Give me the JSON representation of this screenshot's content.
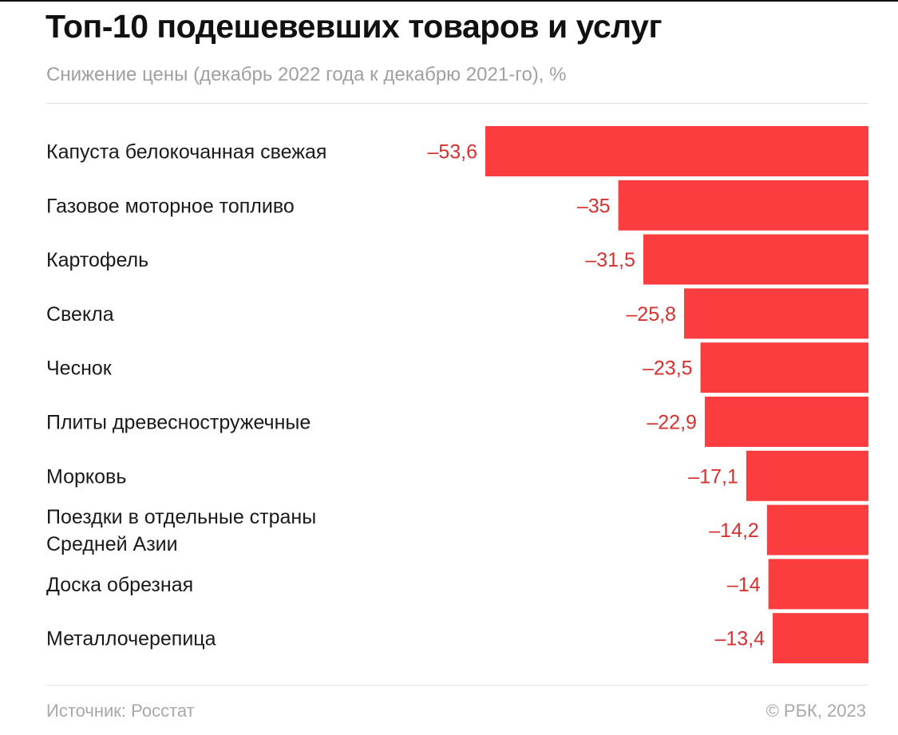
{
  "chart_data": {
    "type": "bar",
    "orientation": "horizontal",
    "title": "Топ-10 подешевевших товаров и услуг",
    "subtitle": "Снижение цены (декабрь 2022 года к декабрю 2021-го), %",
    "categories": [
      [
        "Капуста белокочанная свежая"
      ],
      [
        "Газовое моторное топливо"
      ],
      [
        "Картофель"
      ],
      [
        "Свекла"
      ],
      [
        "Чеснок"
      ],
      [
        "Плиты древесностружечные"
      ],
      [
        "Морковь"
      ],
      [
        "Поездки в отдельные страны",
        "Средней Азии"
      ],
      [
        "Доска обрезная"
      ],
      [
        "Металлочерепица"
      ]
    ],
    "values": [
      -53.6,
      -35,
      -31.5,
      -25.8,
      -23.5,
      -22.9,
      -17.1,
      -14.2,
      -14,
      -13.4
    ],
    "value_labels": [
      "–53,6",
      "–35",
      "–31,5",
      "–25,8",
      "–23,5",
      "–22,9",
      "–17,1",
      "–14,2",
      "–14",
      "–13,4"
    ],
    "xlim": [
      -53.6,
      0
    ],
    "bar_color": "#fb3d3f",
    "value_label_color": "#d7302f",
    "grid": false,
    "legend": "none"
  },
  "footer": {
    "source": "Источник: Росстат",
    "copyright": "© РБК, 2023"
  }
}
